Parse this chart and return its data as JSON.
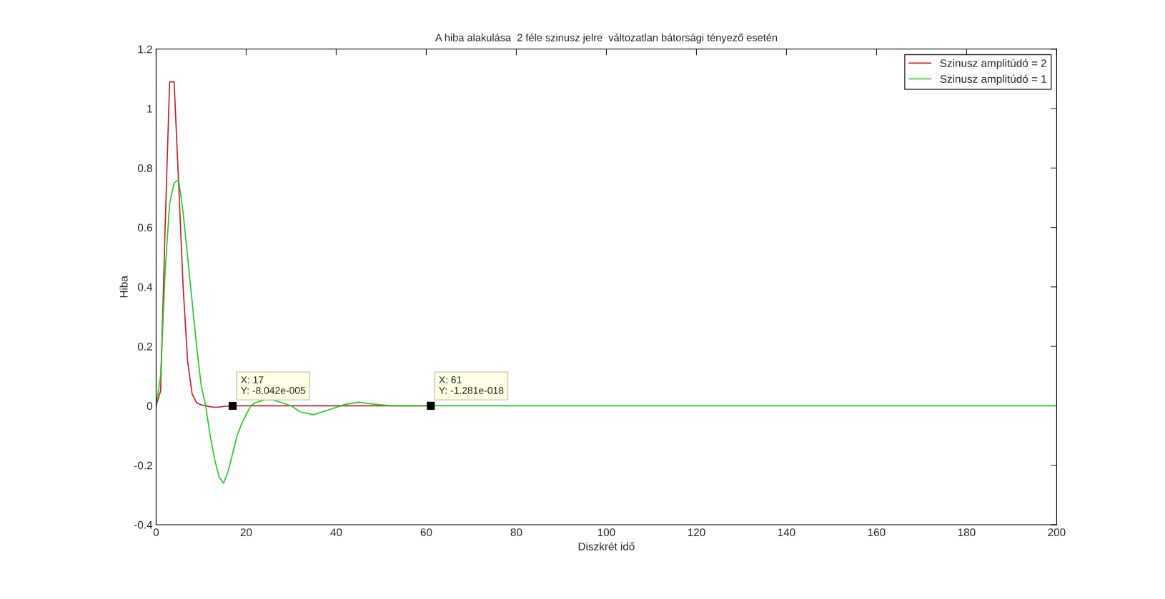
{
  "chart_data": {
    "type": "line",
    "title": "A hiba alakulása  2 féle szinusz jelre  változatlan bátorsági tényező esetén",
    "xlabel": "Diszkrét idő",
    "ylabel": "Hiba",
    "series": [
      {
        "name": "Szinusz amplitúdó = 2",
        "color": "#c8202a",
        "x": [
          0,
          1,
          2,
          3,
          4,
          5,
          6,
          7,
          8,
          9,
          10,
          11,
          12,
          13,
          14,
          15,
          17,
          20,
          30,
          40,
          50,
          60
        ],
        "values": [
          0,
          0.05,
          0.6,
          1.09,
          1.09,
          0.75,
          0.4,
          0.15,
          0.04,
          0.01,
          0.003,
          0,
          -0.003,
          -0.005,
          -0.004,
          -0.002,
          -8e-05,
          0,
          0,
          0,
          0,
          0
        ]
      },
      {
        "name": "Szinusz amplitúdó = 1",
        "color": "#22cc22",
        "x": [
          0,
          1,
          2,
          3,
          4,
          5,
          6,
          7,
          8,
          9,
          10,
          11,
          12,
          13,
          14,
          15,
          16,
          17,
          18,
          19,
          20,
          21,
          22,
          24,
          26,
          28,
          30,
          32,
          35,
          38,
          40,
          42,
          45,
          48,
          52,
          60,
          61,
          100,
          150,
          200
        ],
        "values": [
          0,
          0.1,
          0.45,
          0.68,
          0.75,
          0.76,
          0.65,
          0.5,
          0.35,
          0.2,
          0.07,
          0,
          -0.1,
          -0.18,
          -0.24,
          -0.26,
          -0.22,
          -0.16,
          -0.1,
          -0.06,
          -0.03,
          0,
          0.01,
          0.02,
          0.02,
          0.01,
          0,
          -0.02,
          -0.03,
          -0.015,
          -0.005,
          0.005,
          0.012,
          0.006,
          0,
          0,
          0,
          0,
          0,
          0
        ]
      }
    ],
    "annotations": [
      {
        "text": "X: 17\nY: -8.042e-005",
        "x": 17,
        "y": -8e-05
      },
      {
        "text": "X: 61\nY: -1.281e-018",
        "x": 61,
        "y": 0
      }
    ],
    "xlim": [
      0,
      200
    ],
    "ylim": [
      -0.4,
      1.2
    ],
    "xticks": [
      0,
      20,
      40,
      60,
      80,
      100,
      120,
      140,
      160,
      180,
      200
    ],
    "yticks": [
      -0.4,
      -0.2,
      0,
      0.2,
      0.4,
      0.6,
      0.8,
      1,
      1.2
    ],
    "grid": false,
    "legend": "top right"
  }
}
